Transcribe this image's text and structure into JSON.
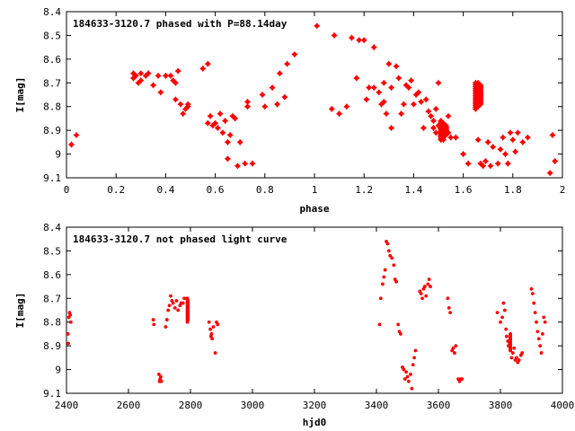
{
  "chart_data": [
    {
      "type": "scatter",
      "title": "184633-3120.7 phased with P=88.14day",
      "xlabel": "phase",
      "ylabel": "I[mag]",
      "xlim": [
        0,
        2
      ],
      "ylim": [
        8.4,
        9.1
      ],
      "y_inverted": true,
      "xticks": [
        0,
        0.2,
        0.4,
        0.6,
        0.8,
        1,
        1.2,
        1.4,
        1.6,
        1.8,
        2
      ],
      "yticks": [
        8.4,
        8.5,
        8.6,
        8.7,
        8.8,
        8.9,
        9,
        9.1
      ],
      "xtick_labels": [
        "0",
        "0.2",
        "0.4",
        "0.6",
        "0.8",
        "1",
        "1.2",
        "1.4",
        "1.6",
        "1.8",
        "2"
      ],
      "ytick_labels": [
        "8.4",
        "8.5",
        "8.6",
        "8.7",
        "8.8",
        "8.9",
        "9",
        "9.1"
      ],
      "grid": false,
      "marker_color": "#ff0000",
      "marker": "star",
      "points": [
        [
          0.02,
          8.96
        ],
        [
          0.04,
          8.92
        ],
        [
          0.27,
          8.68
        ],
        [
          0.27,
          8.66
        ],
        [
          0.28,
          8.67
        ],
        [
          0.29,
          8.7
        ],
        [
          0.3,
          8.66
        ],
        [
          0.3,
          8.69
        ],
        [
          0.32,
          8.67
        ],
        [
          0.33,
          8.66
        ],
        [
          0.35,
          8.71
        ],
        [
          0.37,
          8.67
        ],
        [
          0.38,
          8.74
        ],
        [
          0.4,
          8.67
        ],
        [
          0.42,
          8.67
        ],
        [
          0.43,
          8.69
        ],
        [
          0.44,
          8.77
        ],
        [
          0.44,
          8.7
        ],
        [
          0.45,
          8.65
        ],
        [
          0.46,
          8.79
        ],
        [
          0.47,
          8.83
        ],
        [
          0.48,
          8.81
        ],
        [
          0.49,
          8.8
        ],
        [
          0.49,
          8.79
        ],
        [
          0.55,
          8.64
        ],
        [
          0.57,
          8.62
        ],
        [
          0.57,
          8.87
        ],
        [
          0.58,
          8.84
        ],
        [
          0.59,
          8.88
        ],
        [
          0.6,
          8.87
        ],
        [
          0.61,
          8.89
        ],
        [
          0.62,
          8.83
        ],
        [
          0.63,
          8.91
        ],
        [
          0.64,
          8.86
        ],
        [
          0.65,
          8.95
        ],
        [
          0.65,
          9.02
        ],
        [
          0.66,
          8.92
        ],
        [
          0.67,
          8.84
        ],
        [
          0.68,
          8.85
        ],
        [
          0.69,
          9.05
        ],
        [
          0.7,
          8.95
        ],
        [
          0.72,
          9.04
        ],
        [
          0.73,
          8.8
        ],
        [
          0.73,
          8.78
        ],
        [
          0.75,
          9.04
        ],
        [
          0.79,
          8.75
        ],
        [
          0.8,
          8.8
        ],
        [
          0.83,
          8.72
        ],
        [
          0.85,
          8.79
        ],
        [
          0.86,
          8.66
        ],
        [
          0.88,
          8.76
        ],
        [
          0.89,
          8.62
        ],
        [
          0.92,
          8.58
        ],
        [
          1.01,
          8.46
        ],
        [
          1.07,
          8.81
        ],
        [
          1.08,
          8.5
        ],
        [
          1.1,
          8.83
        ],
        [
          1.13,
          8.8
        ],
        [
          1.15,
          8.51
        ],
        [
          1.17,
          8.68
        ],
        [
          1.18,
          8.52
        ],
        [
          1.2,
          8.52
        ],
        [
          1.21,
          8.77
        ],
        [
          1.22,
          8.72
        ],
        [
          1.24,
          8.72
        ],
        [
          1.24,
          8.55
        ],
        [
          1.26,
          8.74
        ],
        [
          1.27,
          8.79
        ],
        [
          1.28,
          8.7
        ],
        [
          1.28,
          8.78
        ],
        [
          1.29,
          8.83
        ],
        [
          1.3,
          8.62
        ],
        [
          1.31,
          8.89
        ],
        [
          1.31,
          8.72
        ],
        [
          1.33,
          8.63
        ],
        [
          1.34,
          8.68
        ],
        [
          1.35,
          8.83
        ],
        [
          1.36,
          8.79
        ],
        [
          1.37,
          8.71
        ],
        [
          1.38,
          8.72
        ],
        [
          1.39,
          8.69
        ],
        [
          1.4,
          8.79
        ],
        [
          1.41,
          8.75
        ],
        [
          1.42,
          8.74
        ],
        [
          1.43,
          8.78
        ],
        [
          1.44,
          8.89
        ],
        [
          1.45,
          8.77
        ],
        [
          1.46,
          8.82
        ],
        [
          1.47,
          8.84
        ],
        [
          1.48,
          8.86
        ],
        [
          1.48,
          8.89
        ],
        [
          1.49,
          8.91
        ],
        [
          1.49,
          8.81
        ],
        [
          1.5,
          8.7
        ],
        [
          1.5,
          8.88
        ],
        [
          1.51,
          8.92
        ],
        [
          1.52,
          8.94
        ],
        [
          1.53,
          8.89
        ],
        [
          1.54,
          8.91
        ],
        [
          1.54,
          8.84
        ],
        [
          1.55,
          8.93
        ],
        [
          1.57,
          8.93
        ],
        [
          1.6,
          9.0
        ],
        [
          1.62,
          9.04
        ],
        [
          1.66,
          8.94
        ],
        [
          1.67,
          9.04
        ],
        [
          1.68,
          9.05
        ],
        [
          1.69,
          9.03
        ],
        [
          1.7,
          8.95
        ],
        [
          1.71,
          9.05
        ],
        [
          1.72,
          8.97
        ],
        [
          1.74,
          9.04
        ],
        [
          1.75,
          8.98
        ],
        [
          1.76,
          8.93
        ],
        [
          1.77,
          9.0
        ],
        [
          1.78,
          9.04
        ],
        [
          1.79,
          8.91
        ],
        [
          1.8,
          8.94
        ],
        [
          1.81,
          8.99
        ],
        [
          1.82,
          8.91
        ],
        [
          1.84,
          8.95
        ],
        [
          1.86,
          8.93
        ],
        [
          1.95,
          9.08
        ],
        [
          1.96,
          8.92
        ],
        [
          1.97,
          9.03
        ]
      ],
      "dense_runs": [
        {
          "x": 1.65,
          "ymin": 8.7,
          "ymax": 8.81
        },
        {
          "x": 1.66,
          "ymin": 8.7,
          "ymax": 8.8
        },
        {
          "x": 1.67,
          "ymin": 8.71,
          "ymax": 8.79
        },
        {
          "x": 1.51,
          "ymin": 8.86,
          "ymax": 8.94
        },
        {
          "x": 1.52,
          "ymin": 8.87,
          "ymax": 8.93
        },
        {
          "x": 1.53,
          "ymin": 8.88,
          "ymax": 8.92
        }
      ]
    },
    {
      "type": "scatter",
      "title": "184633-3120.7 not phased light curve",
      "xlabel": "hjd0",
      "ylabel": "I[mag]",
      "xlim": [
        2400,
        4000
      ],
      "ylim": [
        8.4,
        9.1
      ],
      "y_inverted": true,
      "xticks": [
        2400,
        2600,
        2800,
        3000,
        3200,
        3400,
        3600,
        3800,
        4000
      ],
      "yticks": [
        8.4,
        8.5,
        8.6,
        8.7,
        8.8,
        8.9,
        9,
        9.1
      ],
      "xtick_labels": [
        "2400",
        "2600",
        "2800",
        "3000",
        "3200",
        "3400",
        "3600",
        "3800",
        "4000"
      ],
      "ytick_labels": [
        "8.4",
        "8.5",
        "8.6",
        "8.7",
        "8.8",
        "8.9",
        "9",
        "9.1"
      ],
      "grid": false,
      "marker_color": "#ff0000",
      "marker": "dot",
      "points": [
        [
          2405,
          8.85
        ],
        [
          2406,
          8.89
        ],
        [
          2408,
          8.78
        ],
        [
          2410,
          8.76
        ],
        [
          2412,
          8.77
        ],
        [
          2414,
          8.8
        ],
        [
          2680,
          8.79
        ],
        [
          2682,
          8.81
        ],
        [
          2698,
          9.02
        ],
        [
          2700,
          9.05
        ],
        [
          2702,
          9.04
        ],
        [
          2704,
          9.03
        ],
        [
          2706,
          9.05
        ],
        [
          2720,
          8.82
        ],
        [
          2724,
          8.79
        ],
        [
          2728,
          8.75
        ],
        [
          2732,
          8.73
        ],
        [
          2736,
          8.69
        ],
        [
          2740,
          8.71
        ],
        [
          2744,
          8.72
        ],
        [
          2750,
          8.74
        ],
        [
          2755,
          8.71
        ],
        [
          2760,
          8.75
        ],
        [
          2766,
          8.73
        ],
        [
          2770,
          8.72
        ],
        [
          2776,
          8.72
        ],
        [
          2780,
          8.7
        ],
        [
          2860,
          8.8
        ],
        [
          2864,
          8.83
        ],
        [
          2866,
          8.86
        ],
        [
          2868,
          8.85
        ],
        [
          2870,
          8.87
        ],
        [
          2874,
          8.82
        ],
        [
          2880,
          8.93
        ],
        [
          2884,
          8.8
        ],
        [
          2888,
          8.81
        ],
        [
          3410,
          8.81
        ],
        [
          3414,
          8.7
        ],
        [
          3420,
          8.64
        ],
        [
          3424,
          8.61
        ],
        [
          3428,
          8.58
        ],
        [
          3432,
          8.46
        ],
        [
          3436,
          8.47
        ],
        [
          3440,
          8.5
        ],
        [
          3444,
          8.52
        ],
        [
          3450,
          8.53
        ],
        [
          3456,
          8.56
        ],
        [
          3460,
          8.62
        ],
        [
          3464,
          8.63
        ],
        [
          3470,
          8.81
        ],
        [
          3474,
          8.84
        ],
        [
          3478,
          8.85
        ],
        [
          3484,
          8.99
        ],
        [
          3488,
          9.0
        ],
        [
          3492,
          9.04
        ],
        [
          3496,
          9.01
        ],
        [
          3500,
          9.03
        ],
        [
          3504,
          9.05
        ],
        [
          3510,
          9.02
        ],
        [
          3514,
          9.08
        ],
        [
          3518,
          8.98
        ],
        [
          3522,
          8.95
        ],
        [
          3526,
          8.92
        ],
        [
          3540,
          8.67
        ],
        [
          3544,
          8.68
        ],
        [
          3548,
          8.7
        ],
        [
          3552,
          8.66
        ],
        [
          3556,
          8.65
        ],
        [
          3560,
          8.69
        ],
        [
          3566,
          8.64
        ],
        [
          3570,
          8.62
        ],
        [
          3574,
          8.65
        ],
        [
          3630,
          8.7
        ],
        [
          3634,
          8.74
        ],
        [
          3638,
          8.76
        ],
        [
          3644,
          8.92
        ],
        [
          3648,
          8.91
        ],
        [
          3652,
          8.93
        ],
        [
          3656,
          8.9
        ],
        [
          3664,
          9.04
        ],
        [
          3668,
          9.05
        ],
        [
          3672,
          9.04
        ],
        [
          3676,
          9.04
        ],
        [
          3790,
          8.76
        ],
        [
          3800,
          8.8
        ],
        [
          3806,
          8.78
        ],
        [
          3810,
          8.72
        ],
        [
          3814,
          8.75
        ],
        [
          3818,
          8.83
        ],
        [
          3820,
          8.86
        ],
        [
          3824,
          8.88
        ],
        [
          3826,
          8.9
        ],
        [
          3830,
          8.89
        ],
        [
          3832,
          8.92
        ],
        [
          3836,
          8.95
        ],
        [
          3840,
          8.93
        ],
        [
          3844,
          8.91
        ],
        [
          3848,
          8.96
        ],
        [
          3852,
          8.95
        ],
        [
          3856,
          8.97
        ],
        [
          3860,
          8.96
        ],
        [
          3866,
          8.94
        ],
        [
          3870,
          8.93
        ],
        [
          3900,
          8.66
        ],
        [
          3904,
          8.68
        ],
        [
          3908,
          8.72
        ],
        [
          3912,
          8.76
        ],
        [
          3916,
          8.8
        ],
        [
          3920,
          8.84
        ],
        [
          3924,
          8.87
        ],
        [
          3928,
          8.9
        ],
        [
          3932,
          8.93
        ],
        [
          3936,
          8.85
        ],
        [
          3940,
          8.78
        ],
        [
          3944,
          8.8
        ]
      ],
      "dense_runs": [
        {
          "x": 2790,
          "ymin": 8.7,
          "ymax": 8.8
        },
        {
          "x": 2792,
          "ymin": 8.71,
          "ymax": 8.79
        },
        {
          "x": 3832,
          "ymin": 8.85,
          "ymax": 8.92
        }
      ]
    }
  ]
}
